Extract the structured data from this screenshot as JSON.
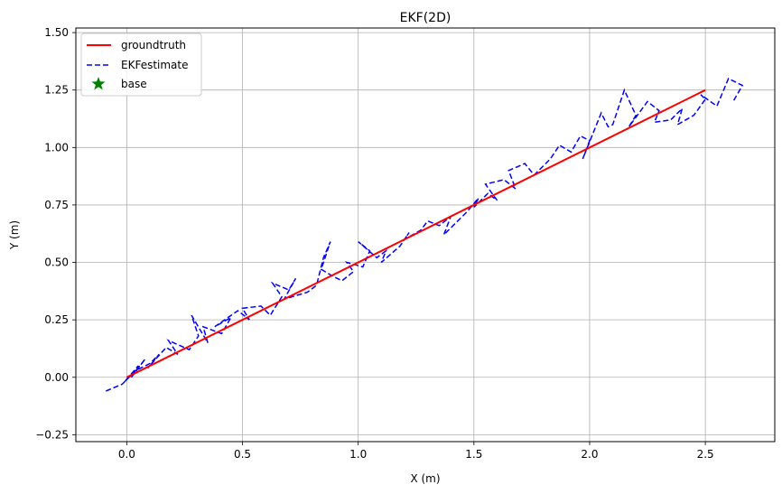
{
  "chart_data": {
    "type": "line",
    "title": "EKF(2D)",
    "xlabel": "X (m)",
    "ylabel": "Y (m)",
    "xlim": [
      -0.22,
      2.8
    ],
    "ylim": [
      -0.28,
      1.52
    ],
    "xticks": [
      0.0,
      0.5,
      1.0,
      1.5,
      2.0,
      2.5
    ],
    "xtick_labels": [
      "0.0",
      "0.5",
      "1.0",
      "1.5",
      "2.0",
      "2.5"
    ],
    "yticks": [
      -0.25,
      0.0,
      0.25,
      0.5,
      0.75,
      1.0,
      1.25,
      1.5
    ],
    "ytick_labels": [
      "−0.25",
      "0.00",
      "0.25",
      "0.50",
      "0.75",
      "1.00",
      "1.25",
      "1.50"
    ],
    "grid": true,
    "legend": "top-left",
    "series": [
      {
        "name": "groundtruth",
        "style": "solid",
        "color": "#ff0000",
        "x": [
          0.0,
          2.5
        ],
        "y": [
          0.0,
          1.25
        ]
      },
      {
        "name": "EKFestimate",
        "style": "dashed",
        "color": "#0000ff",
        "x": [
          -0.09,
          -0.02,
          0.03,
          -0.01,
          0.05,
          0.02,
          0.08,
          0.04,
          0.1,
          0.14,
          0.09,
          0.17,
          0.22,
          0.18,
          0.27,
          0.31,
          0.28,
          0.35,
          0.33,
          0.41,
          0.45,
          0.38,
          0.48,
          0.53,
          0.5,
          0.58,
          0.62,
          0.67,
          0.63,
          0.7,
          0.73,
          0.68,
          0.78,
          0.82,
          0.85,
          0.88,
          0.84,
          0.89,
          0.93,
          0.98,
          0.95,
          1.02,
          1.05,
          1.0,
          1.08,
          1.12,
          1.1,
          1.18,
          1.22,
          1.2,
          1.27,
          1.3,
          1.35,
          1.4,
          1.37,
          1.43,
          1.47,
          1.52,
          1.5,
          1.56,
          1.6,
          1.55,
          1.63,
          1.68,
          1.65,
          1.72,
          1.76,
          1.8,
          1.83,
          1.87,
          1.92,
          1.96,
          2.0,
          1.97,
          2.05,
          2.08,
          2.1,
          2.15,
          2.2,
          2.17,
          2.25,
          2.3,
          2.28,
          2.35,
          2.4,
          2.38,
          2.45,
          2.5,
          2.48,
          2.55,
          2.6,
          2.66,
          2.62
        ],
        "y": [
          -0.06,
          -0.03,
          0.02,
          -0.02,
          0.05,
          0.0,
          0.08,
          0.03,
          0.06,
          0.1,
          0.04,
          0.13,
          0.1,
          0.16,
          0.12,
          0.18,
          0.27,
          0.15,
          0.22,
          0.19,
          0.26,
          0.22,
          0.29,
          0.25,
          0.3,
          0.31,
          0.27,
          0.35,
          0.41,
          0.38,
          0.43,
          0.34,
          0.37,
          0.4,
          0.52,
          0.59,
          0.47,
          0.44,
          0.42,
          0.46,
          0.5,
          0.48,
          0.55,
          0.59,
          0.52,
          0.55,
          0.5,
          0.57,
          0.63,
          0.6,
          0.64,
          0.68,
          0.66,
          0.7,
          0.62,
          0.68,
          0.72,
          0.78,
          0.74,
          0.8,
          0.77,
          0.84,
          0.86,
          0.82,
          0.9,
          0.93,
          0.88,
          0.92,
          0.95,
          1.01,
          0.98,
          1.05,
          1.03,
          0.95,
          1.15,
          1.09,
          1.1,
          1.25,
          1.14,
          1.09,
          1.2,
          1.16,
          1.11,
          1.12,
          1.17,
          1.1,
          1.14,
          1.21,
          1.23,
          1.18,
          1.3,
          1.27,
          1.2
        ]
      },
      {
        "name": "base",
        "style": "marker-star",
        "color": "#008000",
        "x": [],
        "y": []
      }
    ]
  }
}
